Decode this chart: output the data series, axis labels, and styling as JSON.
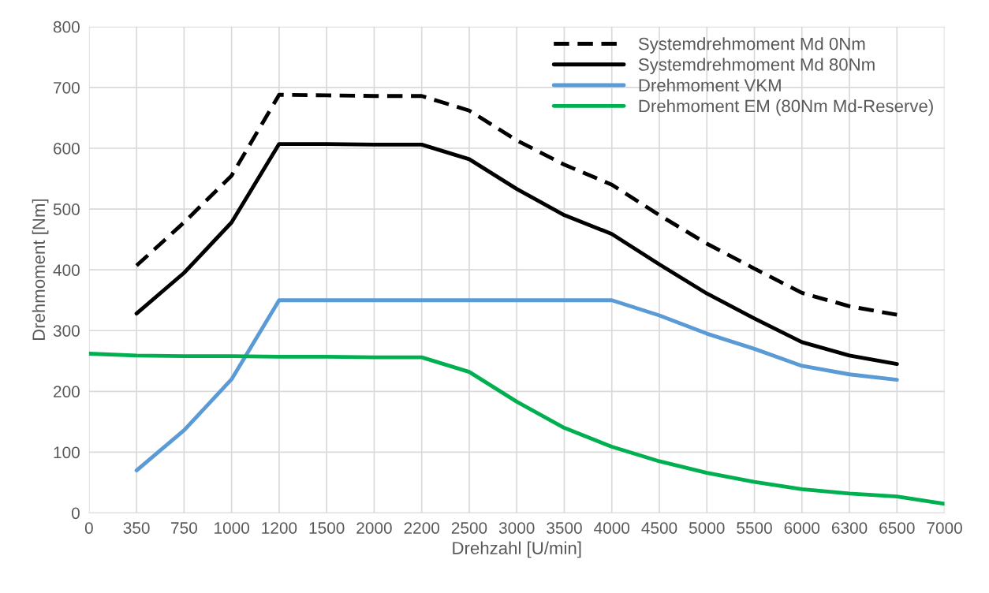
{
  "chart_data": {
    "type": "line",
    "xlabel": "Drehzahl [U/min]",
    "ylabel": "Drehmoment [Nm]",
    "categories": [
      "0",
      "350",
      "750",
      "1000",
      "1200",
      "1500",
      "2000",
      "2200",
      "2500",
      "3000",
      "3500",
      "4000",
      "4500",
      "5000",
      "5500",
      "6000",
      "6300",
      "6500",
      "7000"
    ],
    "series": [
      {
        "name": "Systemdrehmoment Md 0Nm",
        "color": "#000000",
        "line_style": "dashed",
        "values": [
          null,
          407,
          478,
          555,
          688,
          687,
          686,
          686,
          662,
          613,
          573,
          540,
          490,
          443,
          402,
          362,
          340,
          326,
          null
        ]
      },
      {
        "name": "Systemdrehmoment Md 80Nm",
        "color": "#000000",
        "line_style": "solid",
        "values": [
          null,
          328,
          395,
          478,
          607,
          607,
          606,
          606,
          582,
          533,
          490,
          459,
          409,
          361,
          320,
          281,
          259,
          245,
          null
        ]
      },
      {
        "name": "Drehmoment VKM",
        "color": "#5b9bd5",
        "line_style": "solid",
        "values": [
          null,
          70,
          136,
          220,
          350,
          350,
          350,
          350,
          350,
          350,
          350,
          350,
          325,
          295,
          270,
          242,
          228,
          219,
          null
        ]
      },
      {
        "name": "Drehmoment EM (80Nm Md-Reserve)",
        "color": "#00b050",
        "line_style": "solid",
        "values": [
          262,
          259,
          258,
          258,
          257,
          257,
          256,
          256,
          232,
          183,
          140,
          109,
          85,
          66,
          51,
          39,
          32,
          27,
          15
        ]
      }
    ],
    "ylim": [
      0,
      800
    ],
    "yticks": [
      0,
      100,
      200,
      300,
      400,
      500,
      600,
      700,
      800
    ],
    "grid": true,
    "legend": "top right",
    "marker": "none"
  }
}
